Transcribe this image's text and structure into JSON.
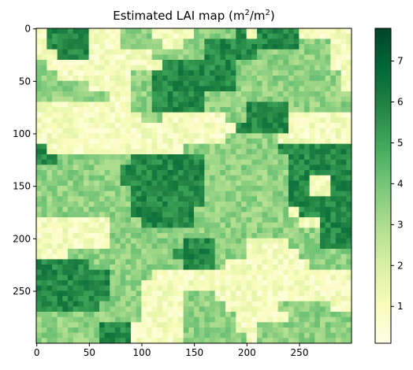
{
  "chart_data": {
    "type": "heatmap",
    "title": "Estimated LAI map (m²/m²)",
    "title_parts": [
      "Estimated LAI map (m",
      "2",
      "/m",
      "2",
      ")"
    ],
    "xlabel": "",
    "ylabel": "",
    "grid": false,
    "origin": "upper",
    "xlim": [
      -0.5,
      299.5
    ],
    "ylim": [
      299.5,
      -0.5
    ],
    "x_ticks": [
      0,
      50,
      100,
      150,
      200,
      250
    ],
    "y_ticks": [
      0,
      50,
      100,
      150,
      200,
      250
    ],
    "colormap": "YlGn",
    "colormap_stops": [
      "#ffffe5",
      "#f7fcb9",
      "#d9f0a3",
      "#addd8e",
      "#78c679",
      "#41ab5d",
      "#238443",
      "#006837",
      "#004529"
    ],
    "value_range": [
      0.1,
      7.8
    ],
    "colorbar": {
      "label": "",
      "ticks": [
        1,
        2,
        3,
        4,
        5,
        6,
        7
      ],
      "placement": "right"
    },
    "grid_size": [
      300,
      300
    ],
    "block_size": 5,
    "zone_levels": [
      {
        "name": "low",
        "value": 1.0
      },
      {
        "name": "mid",
        "value": 3.5
      },
      {
        "name": "high",
        "value": 5.8
      }
    ],
    "zone_map": [
      "LHHHHLLLMMMLLLLMMMMHLHHHHLLLLL",
      "LHHHHLLLMMMMLLMMHHHHHHHHHMMMLL",
      "LLHHHLLLLLLMMMMMHHHHHMMMMMMMLL",
      "MLLLLLLLLLLLHHHHHHHMMMMMMMMMLL",
      "MMLLLLLLLMMHHHHHHHHMMMMMMMMMML",
      "MMMMMLLLLMMHHHHHHHHMMMMMMMMMML",
      "MMMMMMMLLMMHHHHHMMMMMMMMMMMMMM",
      "LLLLLLLLLMMHHHHHMMMMHHHHMMMMMM",
      "LLLLLLLLLLMMLLLLLLMMHHHHLLLLLL",
      "LLLLLLLLLLLLLLLLLLLHHHHHLLLLLL",
      "LLLLLLLLLLLLLLLLLLMMMMMLLLLLLL",
      "HLLLLLLLLLLLLLMMMMMMMMMHHHHHHH",
      "HHMMMMMMMHHHHHHHMMMMMMMMHHHHHH",
      "MMMMMMMMHHHHHHHHMMMMMMMMHHHHHH",
      "MMMMMMMMHHHHHHHHMMMMMMMMHHLLHH",
      "MMMMMMMMMHHHHHHHMMMMMMMMHHLLHH",
      "MMMMMMMMMHHHHHHHMMMMMMMMHHHHHH",
      "MMMMMMMMMHHHHHHMMMMMMMMMLHHHHH",
      "LLLLLLLMMMHHHHHMMMMMMMMMMLLHHH",
      "LLLLLLLMMMMMMMMMMMMMMMMMMMMHHH",
      "LLLLLLLMMMMMMMHHHMMMLLLLMMMHHH",
      "LLLMMMMMMMMMMHHHHMMMLLLLLMMMMM",
      "HHHHHMMMMMMMMMHHHMLLLLLLLLMMMM",
      "HHHHHHHMMMMLLLLLLLLLLLLLLLLLLL",
      "HHHHHHHMMMLLLLLLLLLLLLLLLLLLLL",
      "HHHHHHHMMMLLLLMMMLLLLLLLLLLLLL",
      "HHHHHHMMMMLLLLMMMMLLLLLMMMMMLL",
      "MMMMMMMMMMLLLLMMMMMLLLLLMMMMMM",
      "MMMMMMHHHLLLLLMMMMMLLMMMMMMMMM",
      "MMMMMMHHHLLLLLMMMMMMLMMMMMMMMM"
    ]
  }
}
